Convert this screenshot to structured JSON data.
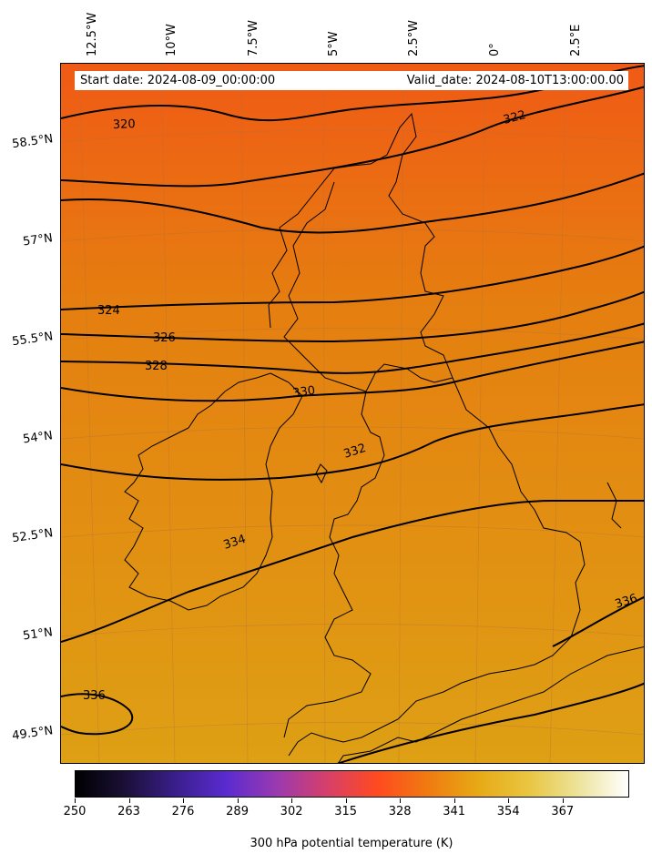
{
  "header": {
    "start_date": "Start date: 2024-08-09_00:00:00",
    "valid_date": "Valid_date: 2024-08-10T13:00:00.00"
  },
  "longitude_labels": [
    "12.5°W",
    "10°W",
    "7.5°W",
    "5°W",
    "2.5°W",
    "0°",
    "2.5°E"
  ],
  "latitude_labels": [
    "58.5°N",
    "57°N",
    "55.5°N",
    "54°N",
    "52.5°N",
    "51°N",
    "49.5°N"
  ],
  "contour_labels": [
    "320",
    "322",
    "324",
    "326",
    "328",
    "330",
    "332",
    "334",
    "336",
    "336"
  ],
  "colorbar": {
    "ticks": [
      "250",
      "263",
      "276",
      "289",
      "302",
      "315",
      "328",
      "341",
      "354",
      "367"
    ],
    "label": "300 hPa potential temperature (K)",
    "colors": [
      "#000000",
      "#1b1038",
      "#3a1f8c",
      "#5a2bd0",
      "#9a3ab0",
      "#d63f6a",
      "#ff4a20",
      "#f07a10",
      "#e7a915",
      "#e9c540",
      "#ece39a",
      "#ffffff"
    ]
  },
  "field_colors": {
    "north": "#f05a15",
    "middle": "#e57f10",
    "south": "#dea014"
  }
}
